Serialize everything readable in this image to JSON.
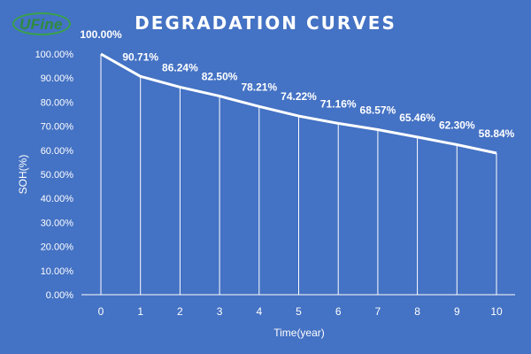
{
  "brand": {
    "logo_text": "UFine"
  },
  "chart_data": {
    "type": "line",
    "title": "DEGRADATION CURVES",
    "xlabel": "Time(year)",
    "ylabel": "SOH(%)",
    "x": [
      0,
      1,
      2,
      3,
      4,
      5,
      6,
      7,
      8,
      9,
      10
    ],
    "values": [
      100.0,
      90.71,
      86.24,
      82.5,
      78.21,
      74.22,
      71.16,
      68.57,
      65.46,
      62.3,
      58.84
    ],
    "data_labels": [
      "100.00%",
      "90.71%",
      "86.24%",
      "82.50%",
      "78.21%",
      "74.22%",
      "71.16%",
      "68.57%",
      "65.46%",
      "62.30%",
      "58.84%"
    ],
    "ylim": [
      0,
      100
    ],
    "yticks": [
      "0.00%",
      "10.00%",
      "20.00%",
      "30.00%",
      "40.00%",
      "50.00%",
      "60.00%",
      "70.00%",
      "80.00%",
      "90.00%",
      "100.00%"
    ],
    "xticks": [
      "0",
      "1",
      "2",
      "3",
      "4",
      "5",
      "6",
      "7",
      "8",
      "9",
      "10"
    ],
    "drop_lines": true,
    "grid": false,
    "colors": {
      "background": "#4472c4",
      "line": "#ffffff",
      "text": "#ffffff"
    }
  }
}
